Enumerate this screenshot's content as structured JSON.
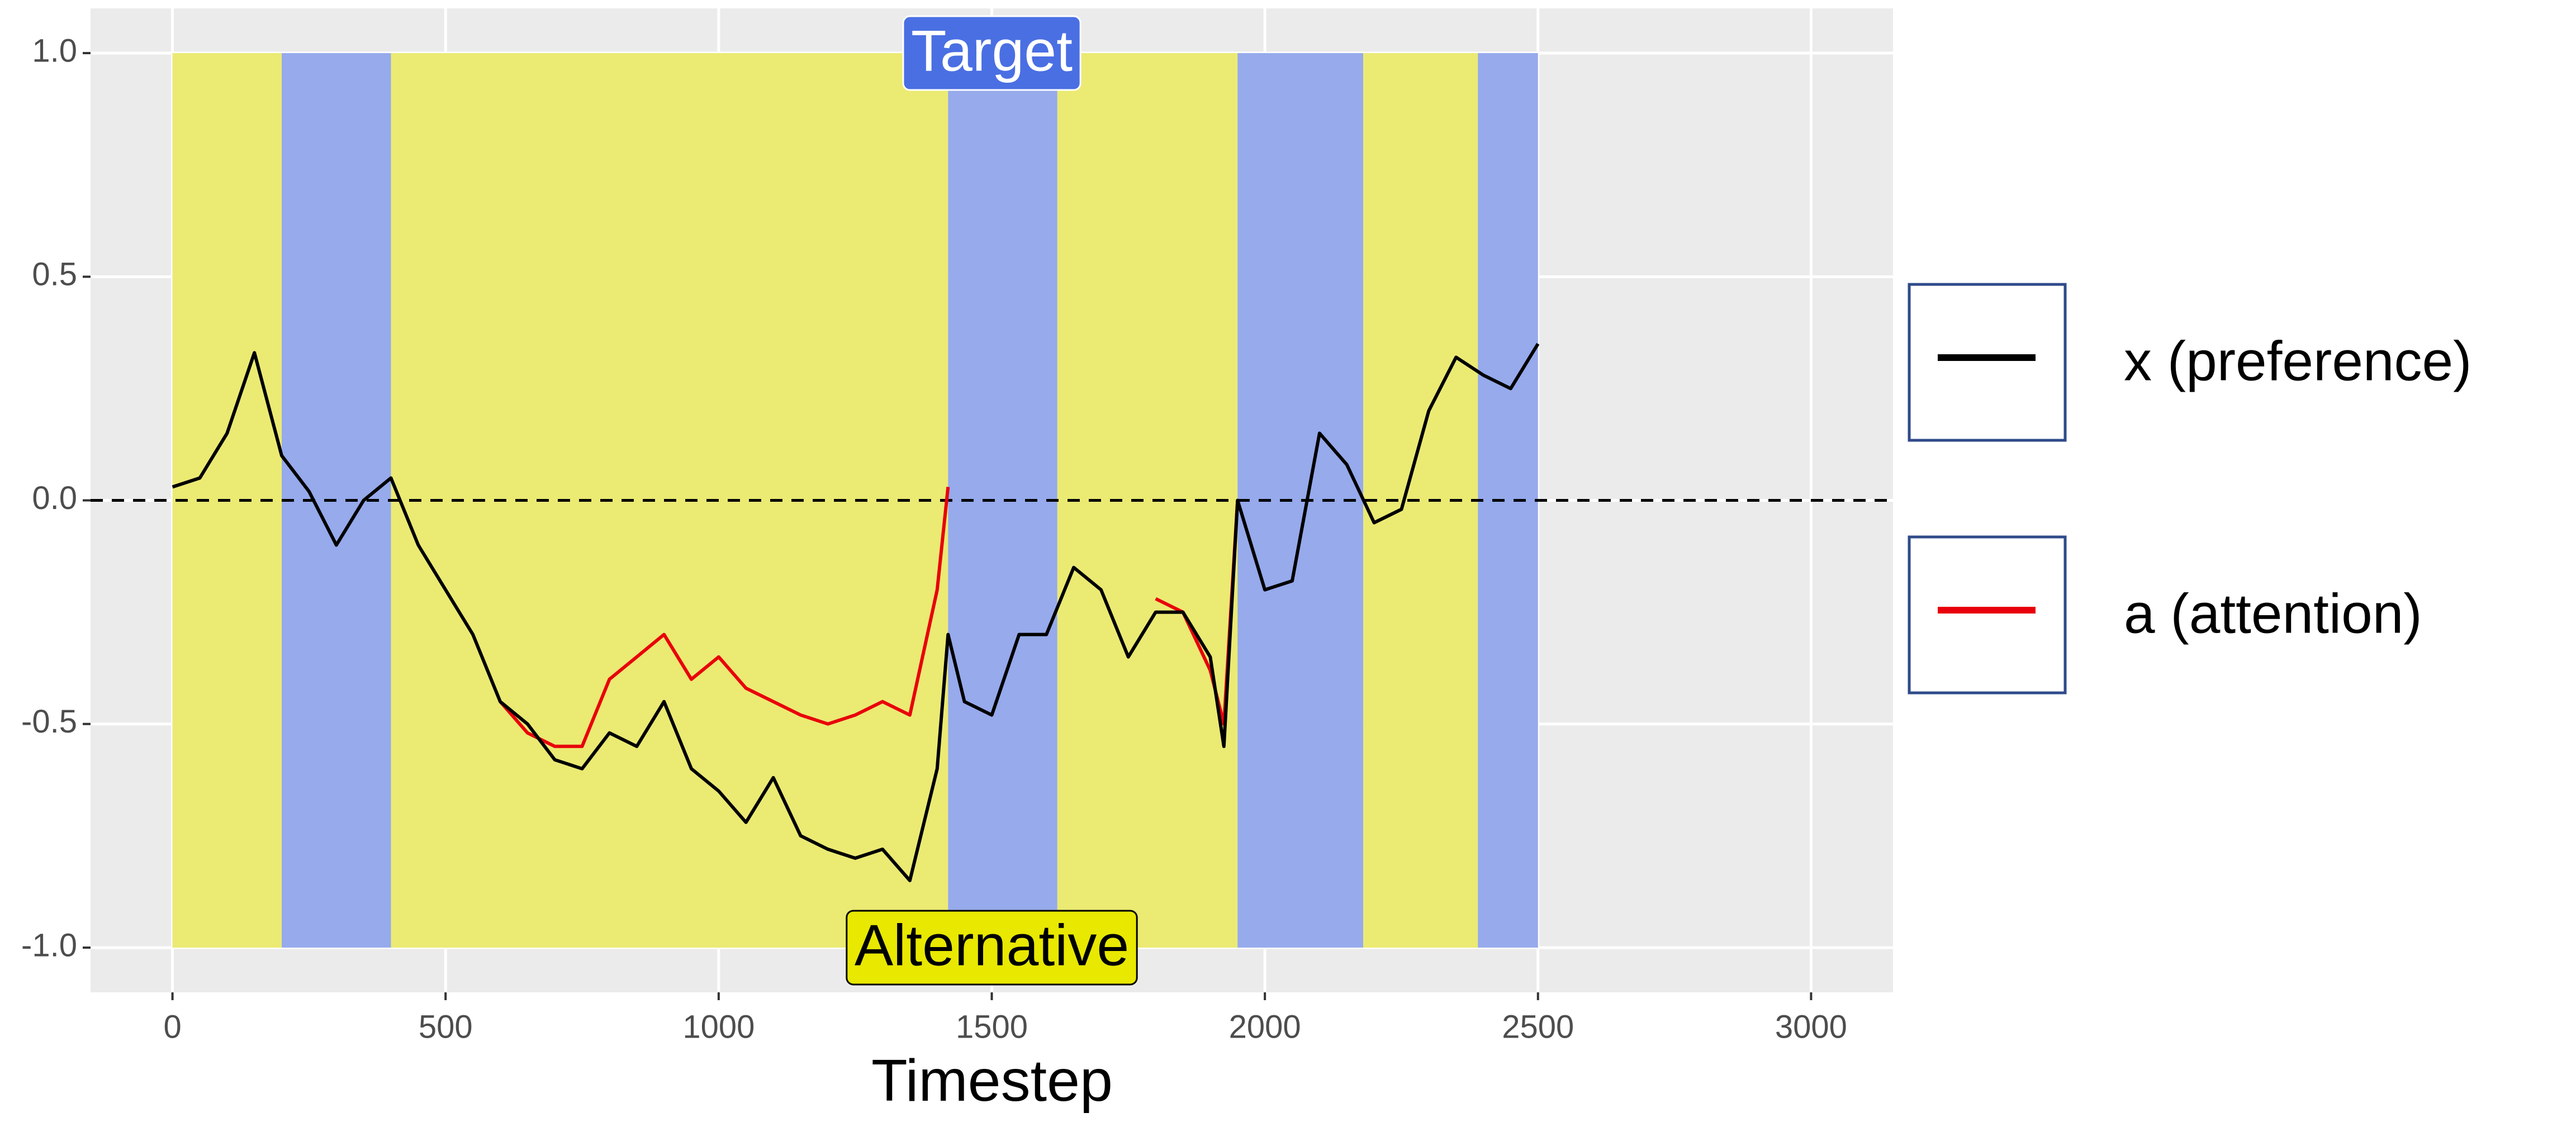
{
  "chart_data": {
    "type": "line",
    "x_label": "Timestep",
    "x": [
      0,
      50,
      100,
      150,
      200,
      250,
      300,
      350,
      400,
      450,
      500,
      550,
      600,
      650,
      700,
      750,
      800,
      850,
      900,
      950,
      1000,
      1050,
      1100,
      1150,
      1200,
      1250,
      1300,
      1350,
      1400,
      1420,
      1450,
      1500,
      1550,
      1600,
      1650,
      1700,
      1750,
      1800,
      1850,
      1900,
      1925,
      1950,
      2000,
      2050,
      2100,
      2150,
      2200,
      2250,
      2300,
      2350,
      2400,
      2450,
      2500
    ],
    "series": [
      {
        "name": "a (attention)",
        "color": "#e8000b",
        "values": [
          null,
          null,
          null,
          null,
          null,
          null,
          null,
          null,
          null,
          null,
          null,
          null,
          -0.45,
          -0.52,
          -0.55,
          -0.55,
          -0.4,
          -0.35,
          -0.3,
          -0.4,
          -0.35,
          -0.42,
          -0.45,
          -0.48,
          -0.5,
          -0.48,
          -0.45,
          -0.48,
          -0.2,
          0.03,
          null,
          null,
          null,
          null,
          null,
          null,
          null,
          -0.22,
          -0.25,
          -0.38,
          -0.5,
          0.0,
          null,
          null,
          null,
          null,
          null,
          null,
          null,
          null,
          null,
          null,
          null
        ]
      },
      {
        "name": "x (preference)",
        "color": "#000000",
        "values": [
          0.03,
          0.05,
          0.15,
          0.33,
          0.1,
          0.02,
          -0.1,
          0.0,
          0.05,
          -0.1,
          -0.2,
          -0.3,
          -0.45,
          -0.5,
          -0.58,
          -0.6,
          -0.52,
          -0.55,
          -0.45,
          -0.6,
          -0.65,
          -0.72,
          -0.62,
          -0.75,
          -0.78,
          -0.8,
          -0.78,
          -0.85,
          -0.6,
          -0.3,
          -0.45,
          -0.48,
          -0.3,
          -0.3,
          -0.15,
          -0.2,
          -0.35,
          -0.25,
          -0.25,
          -0.35,
          -0.55,
          0.0,
          -0.2,
          -0.18,
          0.15,
          0.08,
          -0.05,
          -0.02,
          0.2,
          0.32,
          0.28,
          0.25,
          0.35
        ]
      }
    ],
    "regions": [
      {
        "x": [
          0,
          200
        ],
        "color": "#ebea73"
      },
      {
        "x": [
          200,
          400
        ],
        "color": "#96aaec"
      },
      {
        "x": [
          400,
          1420
        ],
        "color": "#ebea73"
      },
      {
        "x": [
          1420,
          1620
        ],
        "color": "#96aaec"
      },
      {
        "x": [
          1620,
          1950
        ],
        "color": "#ebea73"
      },
      {
        "x": [
          1950,
          2180
        ],
        "color": "#96aaec"
      },
      {
        "x": [
          2180,
          2390
        ],
        "color": "#ebea73"
      },
      {
        "x": [
          2390,
          2500
        ],
        "color": "#96aaec"
      }
    ],
    "region_ylim": [
      -1,
      1
    ],
    "hline": 0,
    "annotations": [
      {
        "text": "Target",
        "x": 1500,
        "y": 1,
        "color": "#4a6fe3",
        "text_color": "#ffffff"
      },
      {
        "text": "Alternative",
        "x": 1500,
        "y": -1,
        "color": "#e8e800",
        "text_color": "#000000"
      }
    ],
    "xlim": [
      -150,
      3150
    ],
    "xticks": [
      0,
      500,
      1000,
      1500,
      2000,
      2500,
      3000
    ],
    "ylim": [
      -1.1,
      1.1
    ],
    "yticks": [
      {
        "value": -1,
        "label": "-1.0"
      },
      {
        "value": -0.5,
        "label": "-0.5"
      },
      {
        "value": 0,
        "label": "0.0"
      },
      {
        "value": 0.5,
        "label": "0.5"
      },
      {
        "value": 1,
        "label": "1.0"
      }
    ],
    "grid": true,
    "legend": "right"
  }
}
